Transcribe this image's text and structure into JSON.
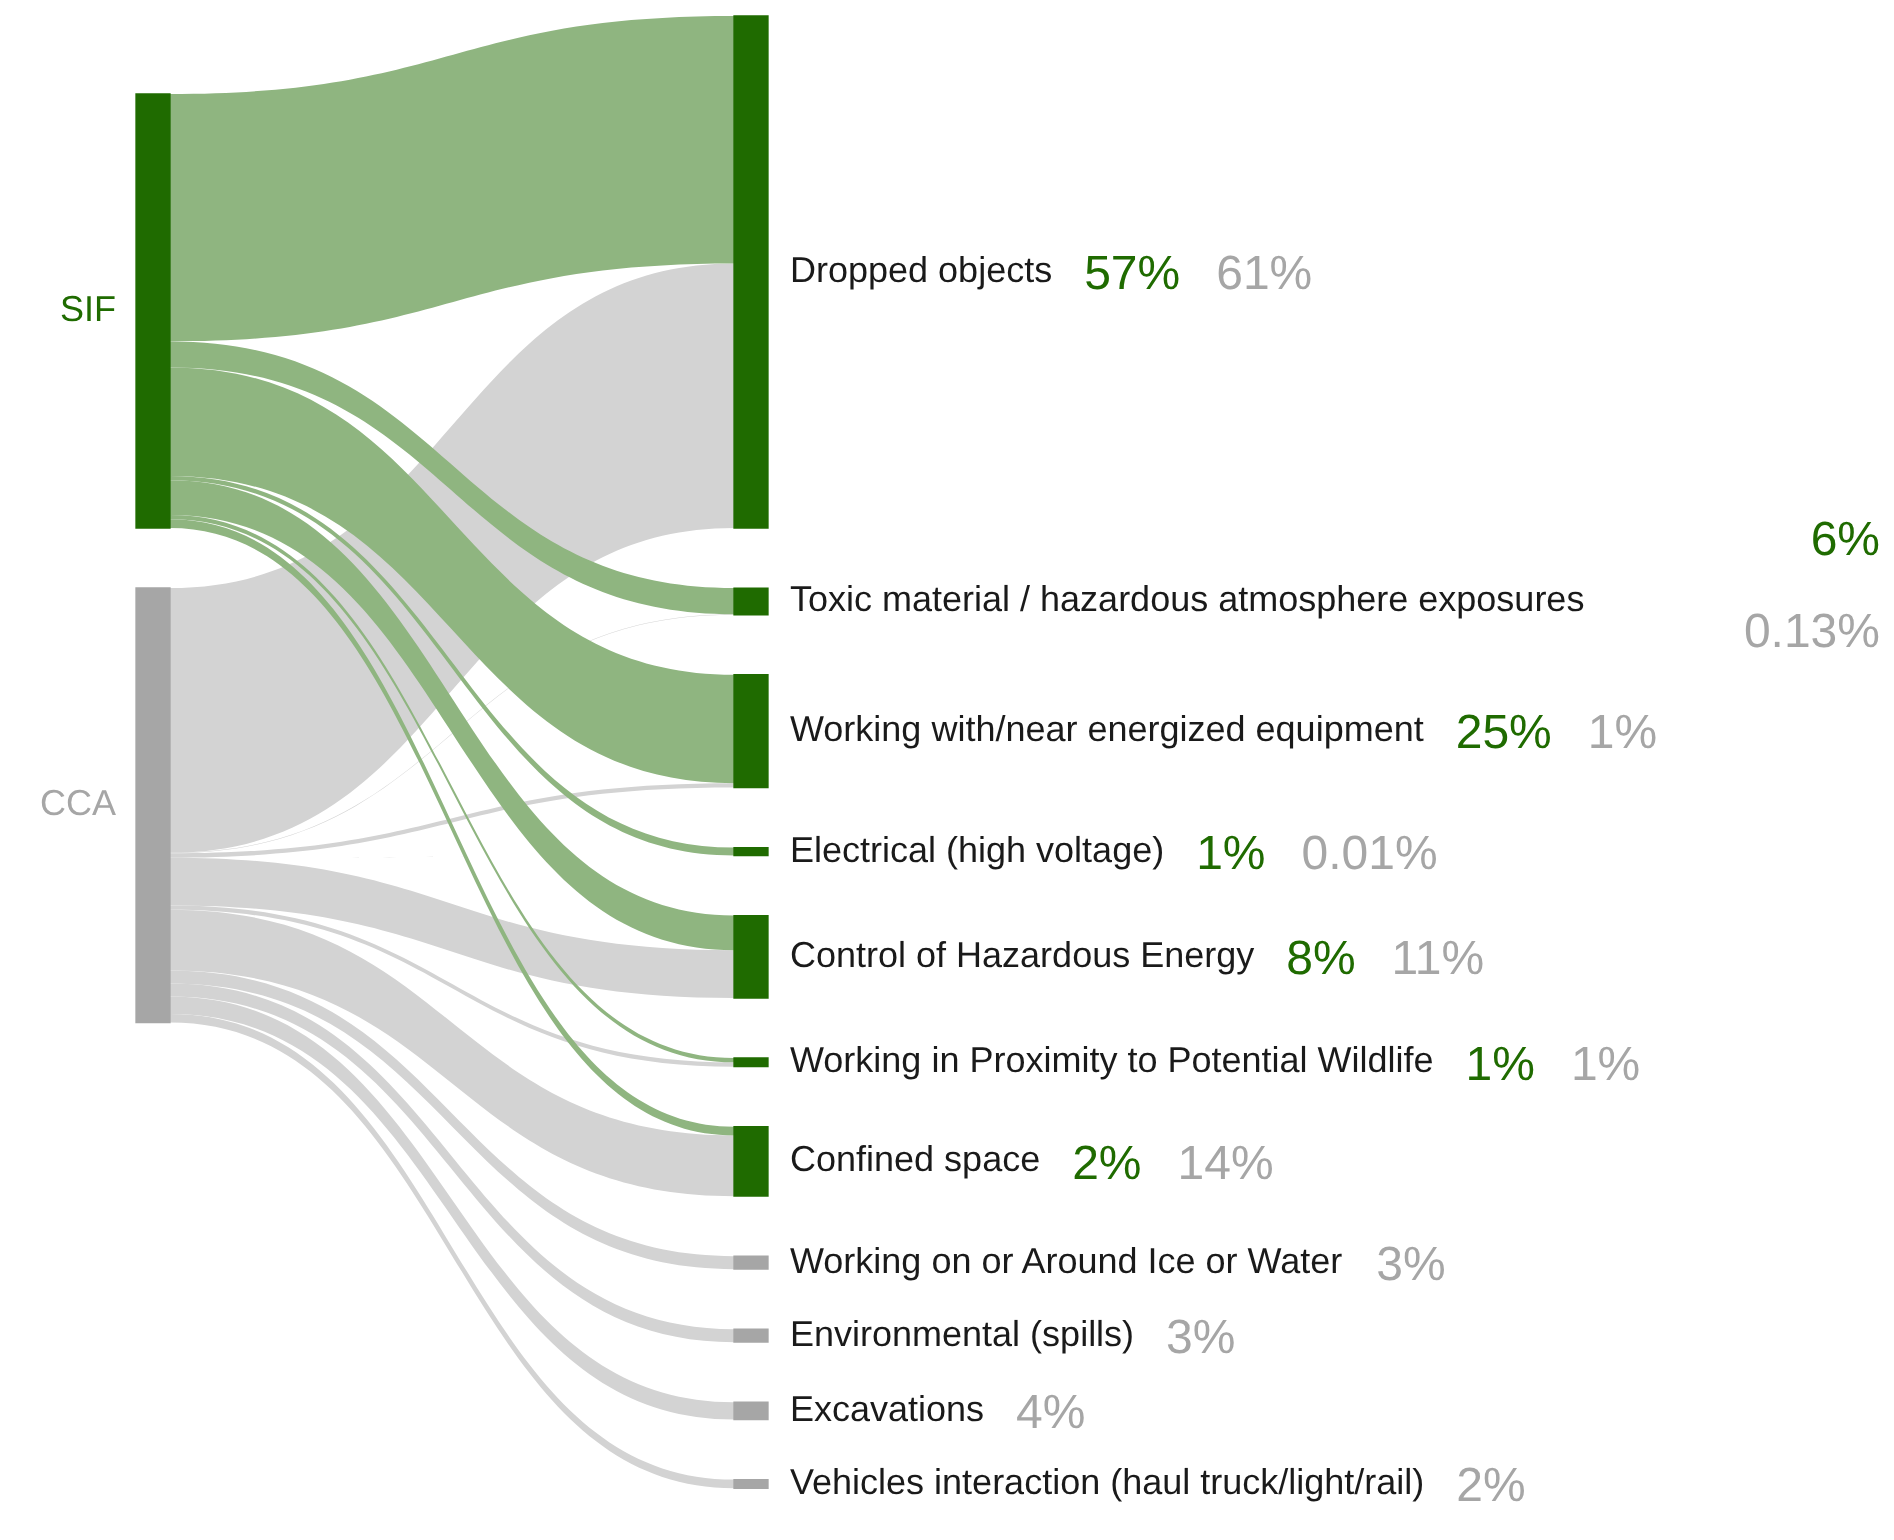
{
  "chart_data": {
    "type": "other",
    "categories": [
      "Dropped objects",
      "Toxic material / hazardous atmosphere exposures",
      "Working with/near energized equipment",
      "Electrical (high voltage)",
      "Control of Hazardous Energy",
      "Working in Proximity to Potential Wildlife",
      "Confined space",
      "Working on or Around Ice or Water",
      "Environmental (spills)",
      "Excavations",
      "Vehicles interaction (haul truck/light/rail)"
    ],
    "series": [
      {
        "name": "SIF",
        "color": "#1f6b00",
        "values": [
          57,
          6,
          25,
          1,
          8,
          1,
          2,
          null,
          null,
          null,
          null
        ],
        "value_labels": [
          "57%",
          "6%",
          "25%",
          "1%",
          "8%",
          "1%",
          "2%",
          null,
          null,
          null,
          null
        ]
      },
      {
        "name": "CCA",
        "color": "#a6a6a6",
        "values": [
          61,
          0.13,
          1,
          0.01,
          11,
          1,
          14,
          3,
          3,
          4,
          2
        ],
        "value_labels": [
          "61%",
          "0.13%",
          "1%",
          "0.01%",
          "11%",
          "1%",
          "14%",
          "3%",
          "3%",
          "4%",
          "2%"
        ]
      }
    ]
  }
}
